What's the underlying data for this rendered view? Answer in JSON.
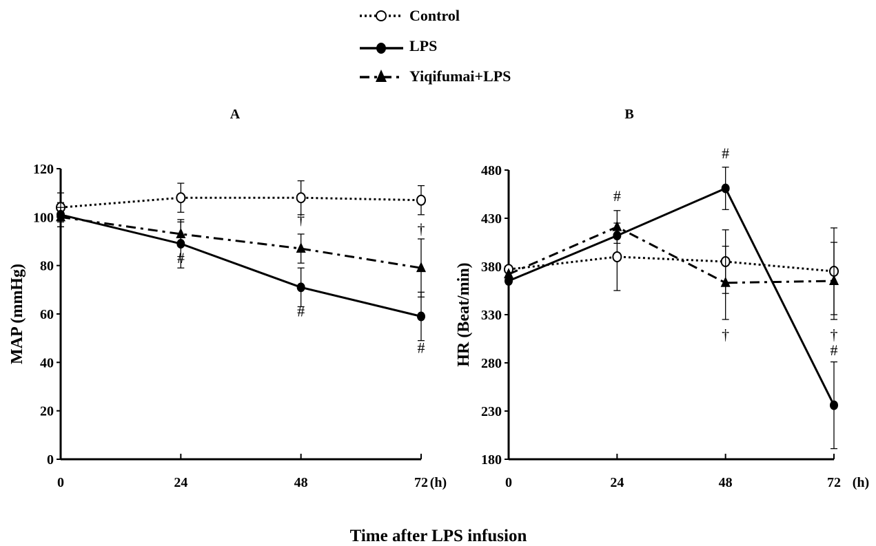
{
  "legend": [
    {
      "label": "Control",
      "style": "dotted",
      "marker": "open-circle"
    },
    {
      "label": "LPS",
      "style": "solid",
      "marker": "filled-circle"
    },
    {
      "label": "Yiqifumai+LPS",
      "style": "dashdot",
      "marker": "filled-triangle"
    }
  ],
  "xlabel_shared": "Time after LPS infusion",
  "chart_data": [
    {
      "type": "line",
      "title": "A",
      "xlabel": "",
      "x_unit_label": "(h)",
      "ylabel": "MAP (mmHg)",
      "x": [
        0,
        24,
        48,
        72
      ],
      "x_ticks": [
        "0",
        "24",
        "48",
        "72"
      ],
      "ylim": [
        0,
        120
      ],
      "y_ticks": [
        0,
        20,
        40,
        60,
        80,
        100,
        120
      ],
      "series": [
        {
          "name": "Control",
          "values": [
            104,
            108,
            108,
            107
          ],
          "err": [
            6,
            6,
            7,
            6
          ]
        },
        {
          "name": "LPS",
          "values": [
            101,
            89,
            71,
            59
          ],
          "err": [
            5,
            10,
            8,
            10
          ]
        },
        {
          "name": "Yiqifumai+LPS",
          "values": [
            100,
            93,
            87,
            79
          ],
          "err": [
            4,
            5,
            6,
            12
          ]
        }
      ],
      "annotations": [
        {
          "x": 24,
          "y": 81,
          "text": "#"
        },
        {
          "x": 48,
          "y": 59,
          "text": "#"
        },
        {
          "x": 72,
          "y": 44,
          "text": "#"
        },
        {
          "x": 48,
          "y": 97,
          "text": "†"
        },
        {
          "x": 72,
          "y": 93,
          "text": "†"
        }
      ]
    },
    {
      "type": "line",
      "title": "B",
      "xlabel": "",
      "x_unit_label": "(h)",
      "ylabel": "HR (Beat/min)",
      "x": [
        0,
        24,
        48,
        72
      ],
      "x_ticks": [
        "0",
        "24",
        "48",
        "72"
      ],
      "ylim": [
        180,
        480
      ],
      "y_ticks": [
        180,
        230,
        280,
        330,
        380,
        430,
        480
      ],
      "series": [
        {
          "name": "Control",
          "values": [
            377,
            390,
            385,
            375
          ],
          "err": [
            0,
            35,
            33,
            45
          ]
        },
        {
          "name": "LPS",
          "values": [
            365,
            412,
            461,
            236
          ],
          "err": [
            0,
            0,
            22,
            45
          ]
        },
        {
          "name": "Yiqifumai+LPS",
          "values": [
            372,
            421,
            363,
            365
          ],
          "err": [
            0,
            17,
            38,
            40
          ]
        }
      ],
      "annotations": [
        {
          "x": 24,
          "y": 448,
          "text": "#"
        },
        {
          "x": 48,
          "y": 492,
          "text": "#"
        },
        {
          "x": 72,
          "y": 288,
          "text": "#"
        },
        {
          "x": 48,
          "y": 304,
          "text": "†"
        },
        {
          "x": 72,
          "y": 304,
          "text": "†"
        }
      ]
    }
  ],
  "colors": {
    "ink": "#000000",
    "background": "#ffffff"
  }
}
